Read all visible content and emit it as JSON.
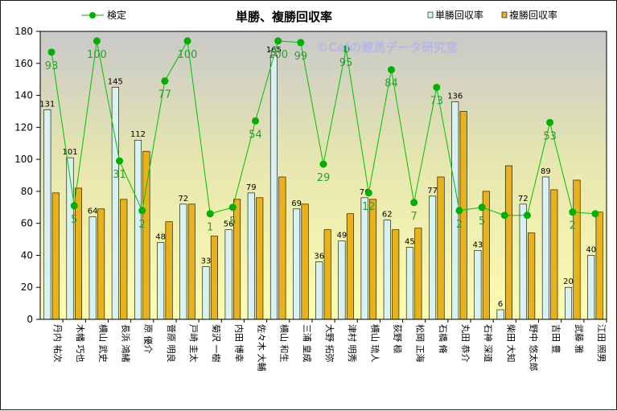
{
  "chart_data": {
    "type": "bar",
    "title": "単勝、複勝回収率",
    "watermark": "©Caiの競馬データ研究室",
    "ylim": [
      0,
      180
    ],
    "yticks": [
      0,
      20,
      40,
      60,
      80,
      100,
      120,
      140,
      160,
      180
    ],
    "grid": false,
    "legend": {
      "position": "top"
    },
    "categories": [
      "丹内 祐次",
      "木幡 巧也",
      "横山 武史",
      "長浜 鴻緒",
      "原 優介",
      "菅原 明良",
      "戸崎 圭太",
      "菊沢 一樹",
      "内田 博幸",
      "佐々木 大輔",
      "横山 和生",
      "三浦 皇成",
      "大野 拓弥",
      "津村 明秀",
      "横山 琉人",
      "荻野 極",
      "松岡 正海",
      "石橋 脩",
      "丸田 恭介",
      "石神 深道",
      "柴田 大知",
      "野中 悠太郎",
      "吉田 豊",
      "武藤 雅",
      "江田 照男"
    ],
    "series": [
      {
        "name": "単勝回収率",
        "kind": "bar",
        "color": "#d8f2f2",
        "values": [
          131,
          101,
          64,
          145,
          112,
          48,
          72,
          33,
          56,
          79,
          165,
          69,
          36,
          49,
          76,
          62,
          45,
          77,
          136,
          43,
          6,
          72,
          89,
          20,
          40
        ],
        "labels": [
          "131",
          "101",
          "64",
          "145",
          "112",
          "48",
          "72",
          "33",
          "56",
          "79",
          "165",
          "69",
          "36",
          "49",
          "76",
          "62",
          "45",
          "77",
          "136",
          "43",
          "6",
          "72",
          "89",
          "20",
          "40"
        ]
      },
      {
        "name": "複勝回収率",
        "kind": "bar",
        "color": "#e8b21c",
        "values": [
          79,
          82,
          69,
          75,
          105,
          61,
          72,
          52,
          75,
          76,
          89,
          72,
          56,
          66,
          75,
          56,
          57,
          89,
          130,
          80,
          96,
          54,
          81,
          87,
          67
        ]
      },
      {
        "name": "検定",
        "kind": "line",
        "color": "#00b000",
        "values": [
          167,
          71,
          174,
          99,
          68,
          149,
          174,
          66,
          70,
          124,
          174,
          173,
          97,
          169,
          79,
          156,
          73,
          145,
          68,
          70,
          65,
          65,
          123,
          67,
          66
        ],
        "labels": [
          "93",
          "5",
          "100",
          "31",
          "2",
          "77",
          "100",
          "1",
          "5",
          "54",
          "100",
          "99",
          "29",
          "95",
          "12",
          "84",
          "7",
          "73",
          "2",
          "5",
          "",
          "",
          "53",
          "2",
          ""
        ]
      }
    ]
  }
}
